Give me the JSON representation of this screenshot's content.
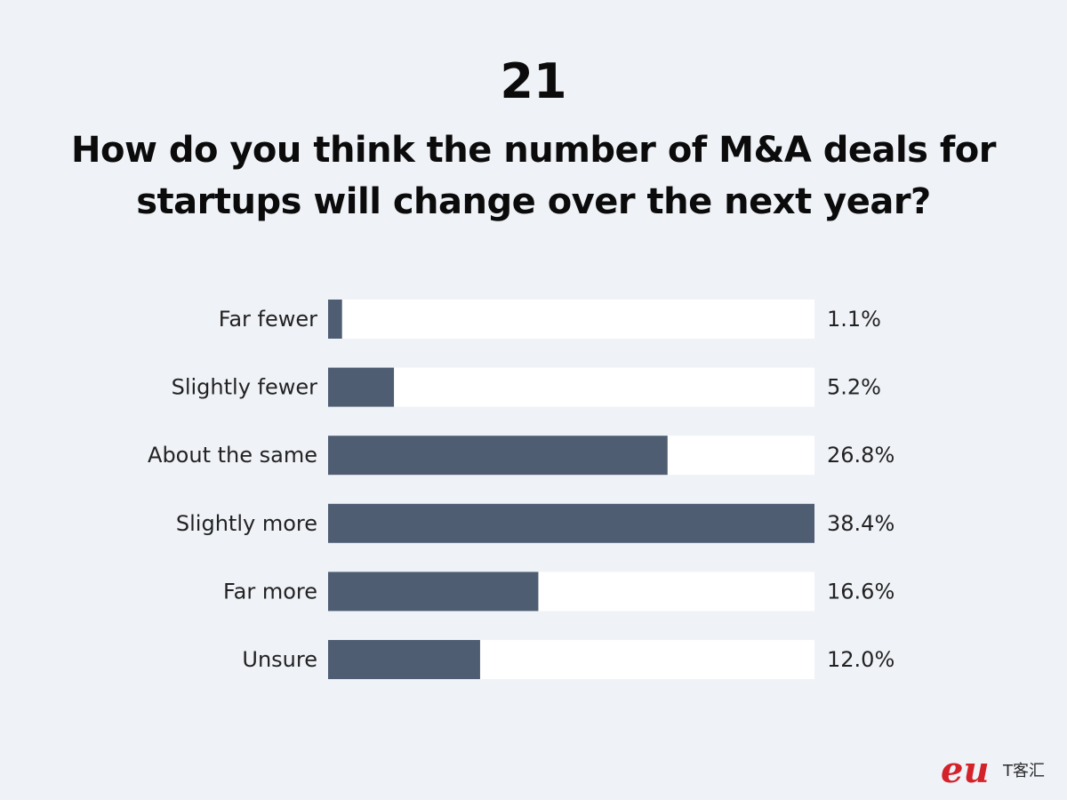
{
  "header": {
    "slide_number": "21",
    "question": "How do you think the number of M&A deals for startups will change over the next year?"
  },
  "colors": {
    "bar": "#4e5d72",
    "track": "#ffffff",
    "background": "#eff2f7",
    "logo": "#d3222a"
  },
  "chart_data": {
    "type": "bar",
    "orientation": "horizontal",
    "categories": [
      "Far fewer",
      "Slightly fewer",
      "About the same",
      "Slightly more",
      "Far more",
      "Unsure"
    ],
    "values": [
      1.1,
      5.2,
      26.8,
      38.4,
      16.6,
      12.0
    ],
    "value_labels": [
      "1.1%",
      "5.2%",
      "26.8%",
      "38.4%",
      "16.6%",
      "12.0%"
    ],
    "xlim": [
      0,
      38.4
    ],
    "grid": false,
    "legend": "none"
  },
  "logo": {
    "mark": "eu",
    "text": "T客汇"
  }
}
